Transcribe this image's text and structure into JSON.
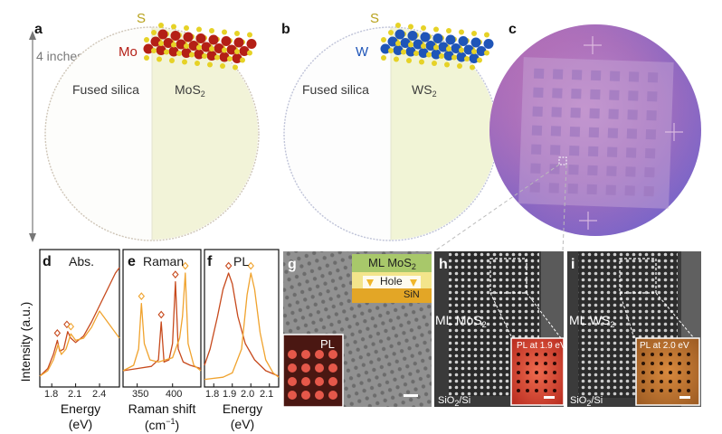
{
  "panels": {
    "a": {
      "letter": "a",
      "size_label": "4 inches",
      "left_label": "Fused silica",
      "right_label": "MoS",
      "right_sub": "2",
      "chalcogen": "S",
      "metal": "Mo"
    },
    "b": {
      "letter": "b",
      "left_label": "Fused silica",
      "right_label": "WS",
      "right_sub": "2",
      "chalcogen": "S",
      "metal": "W"
    },
    "c": {
      "letter": "c"
    },
    "d": {
      "letter": "d",
      "title": "Abs.",
      "xlabel_line1": "Energy",
      "xlabel_line2": "(eV)",
      "xticks": [
        "1.8",
        "2.1",
        "2.4"
      ]
    },
    "e": {
      "letter": "e",
      "title": "Raman",
      "xlabel_line1": "Raman shift",
      "xlabel_unit": "(cm",
      "xlabel_sup": "−1",
      "xlabel_close": ")",
      "xticks": [
        "350",
        "400"
      ]
    },
    "f": {
      "letter": "f",
      "title": "PL",
      "xlabel_line1": "Energy",
      "xlabel_line2": "(eV)",
      "xticks": [
        "1.8",
        "1.9",
        "2.0",
        "2.1"
      ]
    },
    "g": {
      "letter": "g",
      "inset_pl": "PL",
      "layer_top": "ML MoS",
      "layer_top_sub": "2",
      "layer_mid": "Hole",
      "layer_bottom": "SiN"
    },
    "h": {
      "letter": "h",
      "label": "ML MoS",
      "label_sub": "2",
      "substrate": "SiO",
      "substrate_sub": "2",
      "substrate_rest": "/Si",
      "inset_text": "PL at 1.9 eV"
    },
    "i": {
      "letter": "i",
      "label": "ML WS",
      "label_sub": "2",
      "substrate": "SiO",
      "substrate_sub": "2",
      "substrate_rest": "/Si",
      "inset_text": "PL at 2.0 eV"
    }
  },
  "ylabel": "Intensity (a.u.)",
  "colors": {
    "mos2": "#c74a1d",
    "ws2": "#f0a32e",
    "mo_atom": "#b41f16",
    "w_atom": "#1f55b8",
    "s_atom": "#e6d226",
    "wafer_film": "#f2f3d8",
    "wafer_purple": "#9a6fc0"
  },
  "chart_data": [
    {
      "type": "line",
      "panel": "d",
      "title": "Abs.",
      "xlabel": "Energy (eV)",
      "ylabel": "Intensity (a.u.)",
      "xlim": [
        1.65,
        2.65
      ],
      "xticks": [
        1.8,
        2.1,
        2.4
      ],
      "series": [
        {
          "color": "#c74a1d",
          "x": [
            1.65,
            1.75,
            1.82,
            1.87,
            1.9,
            1.95,
            2.0,
            2.04,
            2.1,
            2.2,
            2.3,
            2.4,
            2.5,
            2.6,
            2.65
          ],
          "y": [
            0.05,
            0.12,
            0.25,
            0.38,
            0.28,
            0.3,
            0.46,
            0.4,
            0.36,
            0.42,
            0.55,
            0.7,
            0.85,
            1.0,
            1.05
          ]
        },
        {
          "color": "#f0a32e",
          "x": [
            1.65,
            1.75,
            1.82,
            1.88,
            1.92,
            1.98,
            2.04,
            2.1,
            2.2,
            2.3,
            2.4,
            2.5,
            2.6,
            2.65
          ],
          "y": [
            0.05,
            0.1,
            0.2,
            0.34,
            0.25,
            0.3,
            0.44,
            0.38,
            0.4,
            0.5,
            0.65,
            0.55,
            0.45,
            0.4
          ]
        }
      ],
      "markers_x": [
        1.87,
        1.99,
        2.04
      ]
    },
    {
      "type": "line",
      "panel": "e",
      "title": "Raman",
      "xlabel": "Raman shift (cm−1)",
      "xlim": [
        330,
        440
      ],
      "xticks": [
        350,
        400
      ],
      "series": [
        {
          "color": "#c74a1d",
          "x": [
            330,
            350,
            370,
            380,
            384,
            388,
            395,
            400,
            404,
            408,
            415,
            425,
            440
          ],
          "y": [
            0.1,
            0.12,
            0.14,
            0.2,
            0.55,
            0.18,
            0.2,
            0.35,
            0.92,
            0.3,
            0.18,
            0.15,
            0.12
          ]
        },
        {
          "color": "#f0a32e",
          "x": [
            330,
            345,
            352,
            356,
            360,
            368,
            380,
            400,
            410,
            414,
            418,
            422,
            430,
            440
          ],
          "y": [
            0.1,
            0.15,
            0.3,
            0.72,
            0.35,
            0.2,
            0.18,
            0.22,
            0.4,
            0.6,
            1.0,
            0.35,
            0.15,
            0.1
          ]
        }
      ],
      "markers_x": [
        356,
        384,
        404,
        418
      ]
    },
    {
      "type": "line",
      "panel": "f",
      "title": "PL",
      "xlabel": "Energy (eV)",
      "xlim": [
        1.75,
        2.15
      ],
      "xticks": [
        1.8,
        1.9,
        2.0,
        2.1
      ],
      "series": [
        {
          "color": "#c74a1d",
          "x": [
            1.75,
            1.78,
            1.82,
            1.85,
            1.88,
            1.9,
            1.93,
            1.97,
            2.02,
            2.08,
            2.15
          ],
          "y": [
            0.15,
            0.3,
            0.6,
            0.85,
            1.0,
            0.9,
            0.6,
            0.35,
            0.2,
            0.1,
            0.05
          ]
        },
        {
          "color": "#f0a32e",
          "x": [
            1.75,
            1.85,
            1.9,
            1.95,
            1.98,
            2.0,
            2.02,
            2.05,
            2.08,
            2.12,
            2.15
          ],
          "y": [
            0.02,
            0.04,
            0.08,
            0.3,
            0.8,
            1.0,
            0.85,
            0.45,
            0.2,
            0.08,
            0.04
          ]
        }
      ],
      "markers_x": [
        1.88,
        2.0
      ]
    }
  ]
}
